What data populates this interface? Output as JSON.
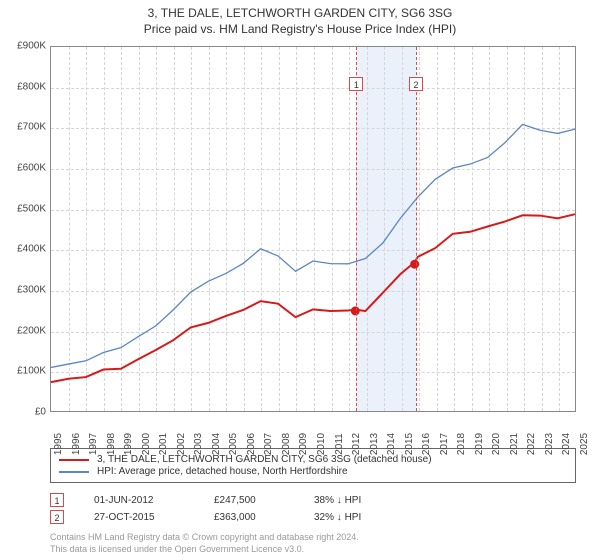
{
  "title_line1": "3, THE DALE, LETCHWORTH GARDEN CITY, SG6 3SG",
  "title_line2": "Price paid vs. HM Land Registry's House Price Index (HPI)",
  "chart": {
    "type": "line",
    "background_color": "#ffffff",
    "grid_color": "#d5d5d5",
    "border_color": "#888888",
    "x_start_year": 1995,
    "x_end_year": 2025,
    "xtick_years": [
      1995,
      1996,
      1997,
      1998,
      1999,
      2000,
      2001,
      2002,
      2003,
      2004,
      2005,
      2006,
      2007,
      2008,
      2009,
      2010,
      2011,
      2012,
      2013,
      2014,
      2015,
      2016,
      2017,
      2018,
      2019,
      2020,
      2021,
      2022,
      2023,
      2024,
      2025
    ],
    "ylim": [
      0,
      900000
    ],
    "ytick_step": 100000,
    "ytick_labels": [
      "£0",
      "£100K",
      "£200K",
      "£300K",
      "£400K",
      "£500K",
      "£600K",
      "£700K",
      "£800K",
      "£900K"
    ],
    "highlight_band": {
      "from_year": 2012.42,
      "to_year": 2015.82,
      "color": "#eaf1fb"
    },
    "vmarkers": [
      {
        "year": 2012.42,
        "label": "1"
      },
      {
        "year": 2015.82,
        "label": "2"
      }
    ],
    "series": [
      {
        "name": "price_paid",
        "label": "3, THE DALE, LETCHWORTH GARDEN CITY, SG6 3SG (detached house)",
        "color": "#d61a1a",
        "line_width": 2,
        "points": [
          [
            1995,
            75000
          ],
          [
            1996,
            78000
          ],
          [
            1997,
            85000
          ],
          [
            1998,
            95000
          ],
          [
            1999,
            110000
          ],
          [
            2000,
            130000
          ],
          [
            2001,
            150000
          ],
          [
            2002,
            175000
          ],
          [
            2003,
            200000
          ],
          [
            2004,
            225000
          ],
          [
            2005,
            235000
          ],
          [
            2006,
            250000
          ],
          [
            2007,
            270000
          ],
          [
            2008,
            260000
          ],
          [
            2009,
            240000
          ],
          [
            2010,
            250000
          ],
          [
            2011,
            248000
          ],
          [
            2012,
            245000
          ],
          [
            2012.42,
            247500
          ],
          [
            2013,
            255000
          ],
          [
            2014,
            290000
          ],
          [
            2015,
            340000
          ],
          [
            2015.82,
            363000
          ],
          [
            2016,
            380000
          ],
          [
            2017,
            410000
          ],
          [
            2018,
            435000
          ],
          [
            2019,
            445000
          ],
          [
            2020,
            450000
          ],
          [
            2021,
            470000
          ],
          [
            2022,
            490000
          ],
          [
            2023,
            480000
          ],
          [
            2024,
            478000
          ],
          [
            2025,
            480000
          ]
        ]
      },
      {
        "name": "hpi",
        "label": "HPI: Average price, detached house, North Hertfordshire",
        "color": "#5b86c4",
        "line_width": 1.3,
        "points": [
          [
            1995,
            110000
          ],
          [
            1996,
            115000
          ],
          [
            1997,
            125000
          ],
          [
            1998,
            140000
          ],
          [
            1999,
            160000
          ],
          [
            2000,
            185000
          ],
          [
            2001,
            210000
          ],
          [
            2002,
            250000
          ],
          [
            2003,
            290000
          ],
          [
            2004,
            325000
          ],
          [
            2005,
            340000
          ],
          [
            2006,
            365000
          ],
          [
            2007,
            400000
          ],
          [
            2008,
            380000
          ],
          [
            2009,
            350000
          ],
          [
            2010,
            370000
          ],
          [
            2011,
            365000
          ],
          [
            2012,
            362000
          ],
          [
            2013,
            375000
          ],
          [
            2014,
            420000
          ],
          [
            2015,
            475000
          ],
          [
            2016,
            530000
          ],
          [
            2017,
            570000
          ],
          [
            2018,
            600000
          ],
          [
            2019,
            615000
          ],
          [
            2020,
            625000
          ],
          [
            2021,
            665000
          ],
          [
            2022,
            705000
          ],
          [
            2023,
            695000
          ],
          [
            2024,
            690000
          ],
          [
            2025,
            695000
          ]
        ]
      }
    ],
    "sale_points": [
      {
        "year": 2012.42,
        "price": 247500
      },
      {
        "year": 2015.82,
        "price": 363000
      }
    ]
  },
  "legend": {
    "items": [
      {
        "color": "#d61a1a",
        "label": "3, THE DALE, LETCHWORTH GARDEN CITY, SG6 3SG (detached house)"
      },
      {
        "color": "#5b86c4",
        "label": "HPI: Average price, detached house, North Hertfordshire"
      }
    ]
  },
  "sales": [
    {
      "marker": "1",
      "date": "01-JUN-2012",
      "price": "£247,500",
      "pct": "38% ↓ HPI"
    },
    {
      "marker": "2",
      "date": "27-OCT-2015",
      "price": "£363,000",
      "pct": "32% ↓ HPI"
    }
  ],
  "footer_line1": "Contains HM Land Registry data © Crown copyright and database right 2024.",
  "footer_line2": "This data is licensed under the Open Government Licence v3.0."
}
